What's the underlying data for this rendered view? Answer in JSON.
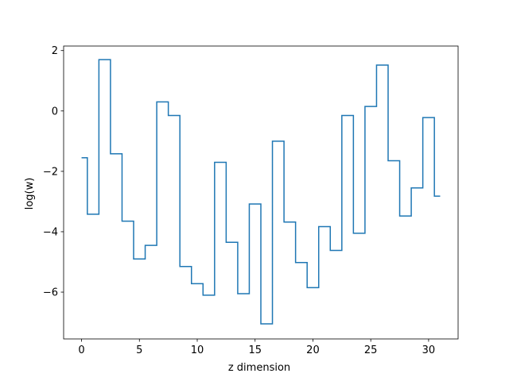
{
  "chart_data": {
    "type": "line",
    "drawstyle": "steps-mid",
    "title": "",
    "xlabel": "z dimension",
    "ylabel": "log(w)",
    "xlim": [
      -1.55,
      32.55
    ],
    "ylim": [
      -7.55,
      2.15
    ],
    "xticks": [
      0,
      5,
      10,
      15,
      20,
      25,
      30
    ],
    "yticks": [
      2,
      0,
      -2,
      -4,
      -6
    ],
    "ytick_labels": [
      "2",
      "0",
      "−2",
      "−4",
      "−6"
    ],
    "grid": false,
    "color": "#1f77b4",
    "x": [
      0,
      1,
      2,
      3,
      4,
      5,
      6,
      7,
      8,
      9,
      10,
      11,
      12,
      13,
      14,
      15,
      16,
      17,
      18,
      19,
      20,
      21,
      22,
      23,
      24,
      25,
      26,
      27,
      28,
      29,
      30,
      31
    ],
    "values": [
      -1.55,
      -3.42,
      1.7,
      -1.42,
      -3.65,
      -4.9,
      -4.45,
      0.3,
      -0.15,
      -5.15,
      -5.72,
      -6.1,
      -1.7,
      -4.35,
      -6.05,
      -3.08,
      -7.05,
      -1.0,
      -3.68,
      -5.02,
      -5.85,
      -3.83,
      -4.62,
      -0.15,
      -4.05,
      0.15,
      1.52,
      -1.65,
      -3.48,
      -2.55,
      -0.22,
      -2.82
    ]
  }
}
